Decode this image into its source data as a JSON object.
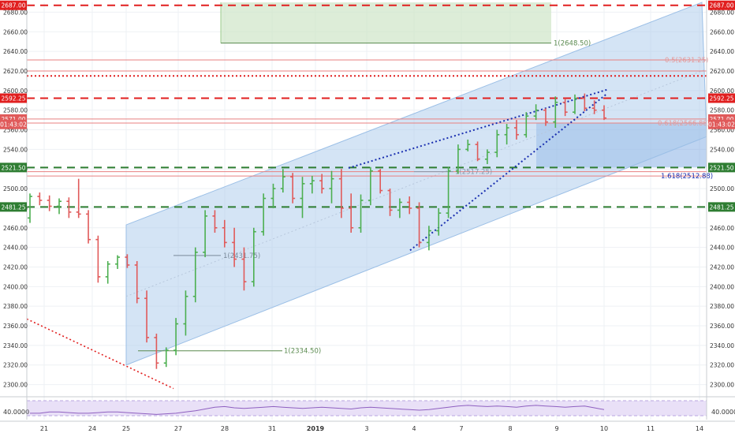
{
  "chart_data": {
    "type": "candlestick",
    "ylim": [
      2290,
      2690
    ],
    "y_ticks": [
      2300,
      2320,
      2340,
      2360,
      2380,
      2400,
      2420,
      2440,
      2460,
      2480,
      2500,
      2520,
      2540,
      2560,
      2580,
      2600,
      2620,
      2640,
      2660,
      2680
    ],
    "x_tick_labels": [
      "21",
      "24",
      "25",
      "27",
      "28",
      "31",
      "2019",
      "3",
      "4",
      "7",
      "8",
      "9",
      "10",
      "11",
      "14"
    ],
    "price_tags_right": [
      "2687.00",
      "2592.25",
      "2571.00",
      "01:43:02",
      "2521.50",
      "2481.25"
    ],
    "price_tags_left": [
      "2687.00",
      "2592.25",
      "2571.00",
      "01:43:02",
      "2521.50",
      "2481.25"
    ],
    "horizontal_levels": [
      {
        "value": 2687.0,
        "style": "dashed",
        "color": "#e11f1f"
      },
      {
        "value": 2592.25,
        "style": "dashed",
        "color": "#e11f1f"
      },
      {
        "value": 2521.5,
        "style": "dashed",
        "color": "#2e7d32"
      },
      {
        "value": 2481.25,
        "style": "dashed",
        "color": "#2e7d32"
      },
      {
        "value": 2615.0,
        "style": "dotted",
        "color": "#e11f1f"
      }
    ],
    "annotations": [
      {
        "text": "1(2648.50)",
        "value": 2648.5
      },
      {
        "text": "1(2431.75)",
        "value": 2431.75
      },
      {
        "text": "1(2334.50)",
        "value": 2334.5
      },
      {
        "text": "1(2517.25)",
        "value": 2517.25
      },
      {
        "text": "0.5(2631.25)",
        "value": 2631.25
      },
      {
        "text": "0.618(2566.88)",
        "value": 2566.88
      },
      {
        "text": "1.618(2512.88)",
        "value": 2512.88
      }
    ],
    "series": [
      {
        "values": [
          [
            2470,
            2495,
            2465,
            2492
          ],
          [
            2492,
            2496,
            2483,
            2488
          ],
          [
            2488,
            2493,
            2477,
            2482
          ],
          [
            2482,
            2490,
            2474,
            2487
          ],
          [
            2487,
            2491,
            2470,
            2476
          ],
          [
            2476,
            2510,
            2470,
            2474
          ],
          [
            2474,
            2478,
            2444,
            2448
          ],
          [
            2448,
            2452,
            2404,
            2410
          ],
          [
            2410,
            2426,
            2403,
            2423
          ],
          [
            2423,
            2432,
            2418,
            2430
          ],
          [
            2430,
            2433,
            2419,
            2422
          ],
          [
            2422,
            2426,
            2383,
            2388
          ],
          [
            2388,
            2396,
            2343,
            2348
          ],
          [
            2348,
            2352,
            2316,
            2322
          ],
          [
            2322,
            2338,
            2318,
            2335
          ],
          [
            2335,
            2368,
            2330,
            2362
          ],
          [
            2362,
            2396,
            2350,
            2390
          ],
          [
            2390,
            2440,
            2384,
            2435
          ],
          [
            2435,
            2478,
            2430,
            2472
          ],
          [
            2472,
            2478,
            2455,
            2460
          ],
          [
            2460,
            2468,
            2440,
            2445
          ],
          [
            2445,
            2460,
            2420,
            2428
          ],
          [
            2428,
            2440,
            2396,
            2405
          ],
          [
            2405,
            2460,
            2400,
            2456
          ],
          [
            2456,
            2495,
            2452,
            2490
          ],
          [
            2490,
            2505,
            2480,
            2500
          ],
          [
            2500,
            2520,
            2496,
            2512
          ],
          [
            2512,
            2516,
            2485,
            2490
          ],
          [
            2490,
            2512,
            2470,
            2505
          ],
          [
            2505,
            2513,
            2495,
            2508
          ],
          [
            2508,
            2515,
            2495,
            2500
          ],
          [
            2500,
            2518,
            2485,
            2510
          ],
          [
            2510,
            2520,
            2470,
            2480
          ],
          [
            2480,
            2495,
            2455,
            2460
          ],
          [
            2460,
            2494,
            2455,
            2488
          ],
          [
            2488,
            2522,
            2483,
            2518
          ],
          [
            2518,
            2520,
            2495,
            2498
          ],
          [
            2498,
            2500,
            2472,
            2478
          ],
          [
            2478,
            2490,
            2470,
            2486
          ],
          [
            2486,
            2492,
            2474,
            2480
          ],
          [
            2480,
            2486,
            2440,
            2445
          ],
          [
            2445,
            2462,
            2437,
            2457
          ],
          [
            2457,
            2480,
            2452,
            2475
          ],
          [
            2475,
            2522,
            2470,
            2518
          ],
          [
            2518,
            2545,
            2515,
            2540
          ],
          [
            2540,
            2550,
            2538,
            2545
          ],
          [
            2545,
            2548,
            2528,
            2530
          ],
          [
            2530,
            2540,
            2525,
            2537
          ],
          [
            2537,
            2560,
            2532,
            2555
          ],
          [
            2555,
            2566,
            2545,
            2562
          ],
          [
            2562,
            2570,
            2550,
            2555
          ],
          [
            2555,
            2578,
            2552,
            2574
          ],
          [
            2574,
            2586,
            2570,
            2580
          ],
          [
            2580,
            2582,
            2564,
            2568
          ],
          [
            2568,
            2594,
            2562,
            2588
          ],
          [
            2588,
            2592,
            2574,
            2578
          ],
          [
            2578,
            2596,
            2576,
            2592
          ],
          [
            2592,
            2597,
            2579,
            2582
          ],
          [
            2582,
            2590,
            2576,
            2580
          ],
          [
            2580,
            2585,
            2570,
            2572
          ]
        ]
      }
    ],
    "rsi": {
      "tick_label": "40.0000",
      "values": [
        38,
        38,
        40,
        40,
        39,
        38,
        38,
        39,
        40,
        40,
        39,
        38,
        37,
        36,
        37,
        38,
        40,
        42,
        45,
        48,
        49,
        47,
        46,
        47,
        48,
        49,
        48,
        47,
        46,
        47,
        48,
        47,
        46,
        45,
        47,
        48,
        47,
        46,
        45,
        44,
        43,
        44,
        46,
        48,
        50,
        51,
        50,
        49,
        50,
        49,
        48,
        50,
        51,
        50,
        49,
        48,
        49,
        50,
        47,
        44
      ]
    }
  }
}
